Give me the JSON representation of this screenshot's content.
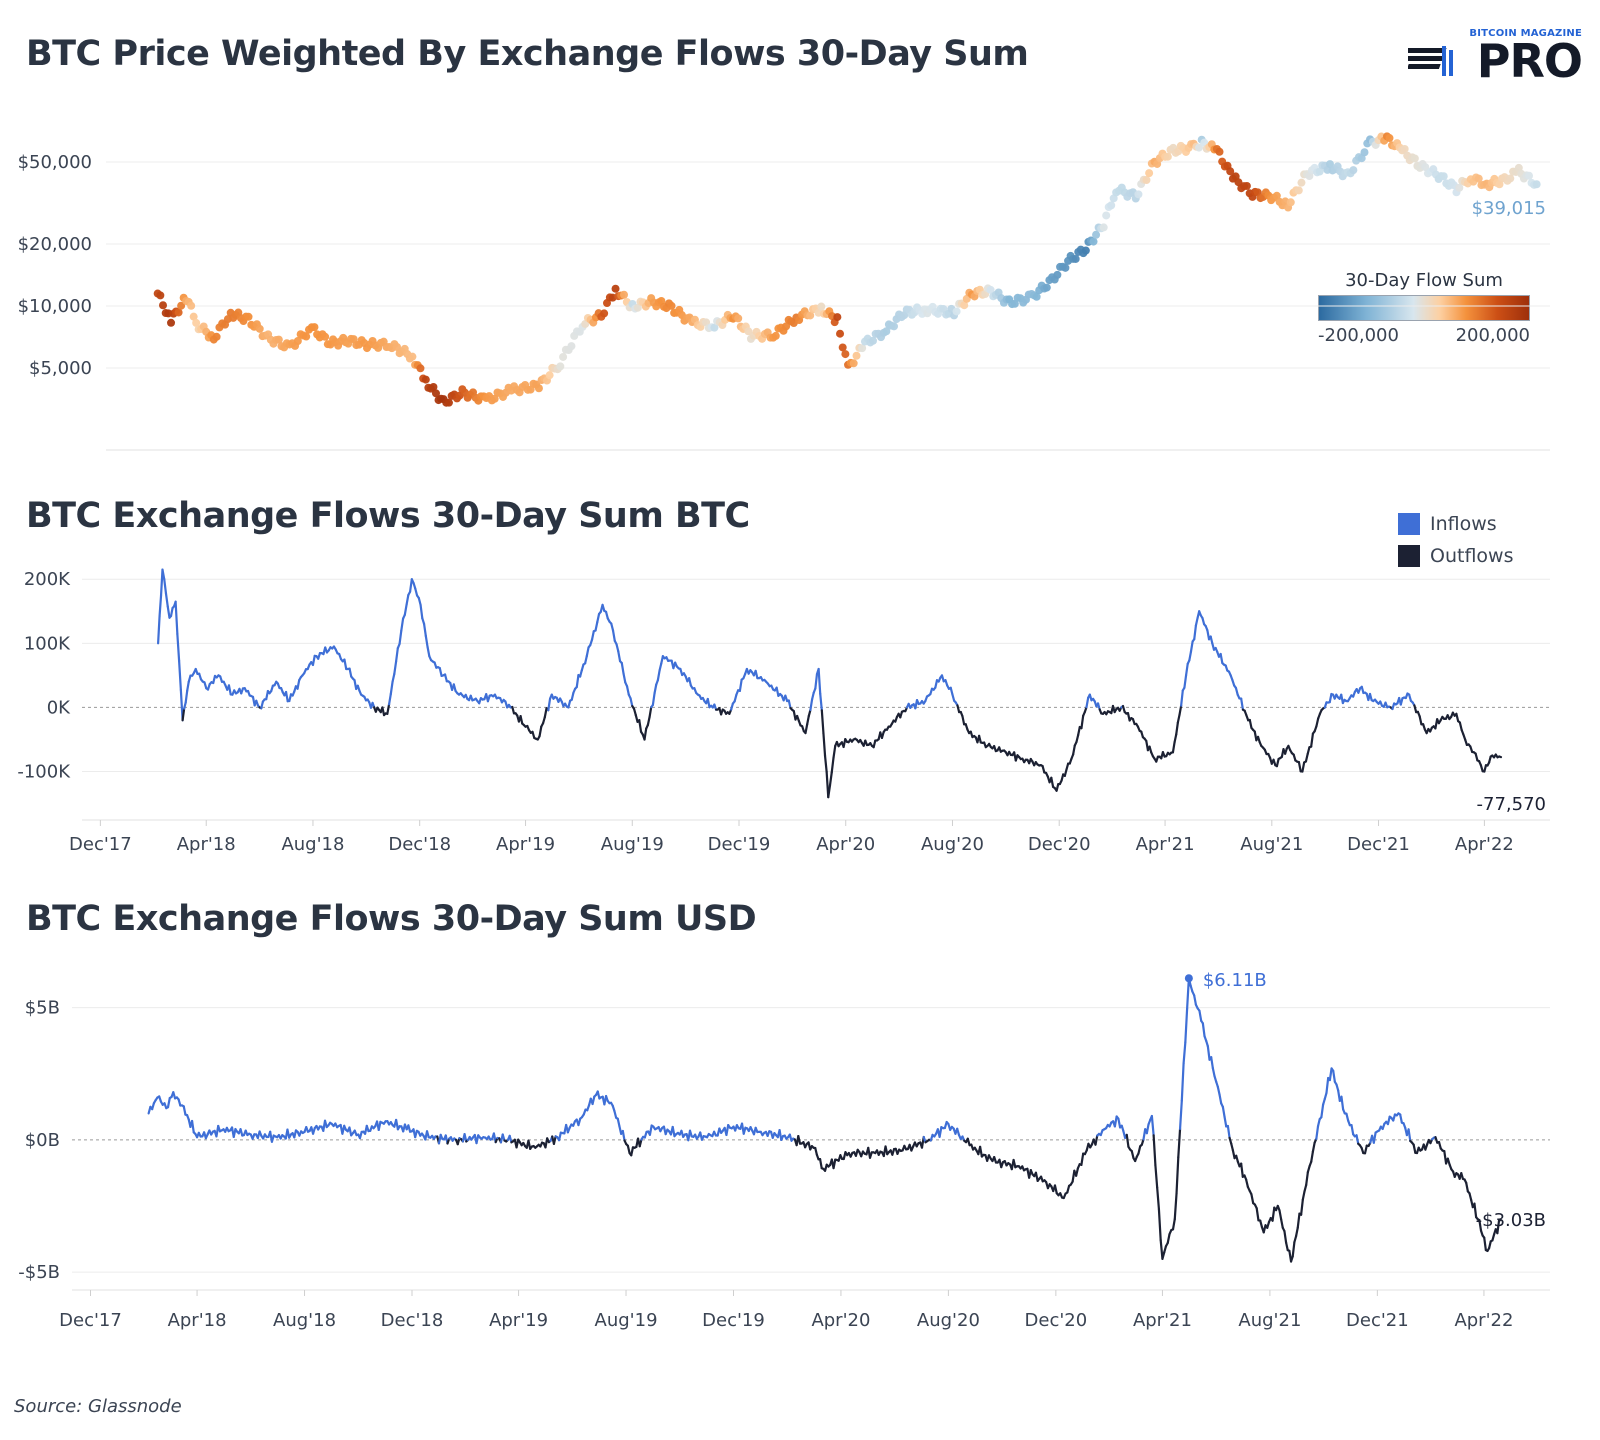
{
  "brand": {
    "top_text": "BITCOIN MAGAZINE",
    "main_text": "PRO"
  },
  "source": "Source: Glassnode",
  "chart_data": [
    {
      "type": "scatter",
      "title": "BTC Price Weighted By Exchange Flows 30-Day Sum",
      "ylabel": "",
      "y_scale": "log",
      "y_ticks": [
        "$5,000",
        "$10,000",
        "$20,000",
        "$50,000"
      ],
      "ylim": [
        2000,
        80000
      ],
      "last_value_label": "$39,015",
      "colorbar": {
        "title": "30-Day Flow Sum",
        "min_label": "-200,000",
        "max_label": "200,000",
        "colors": [
          "#2c6aa0",
          "#7fb3d5",
          "#d8e6ee",
          "#fdd0a2",
          "#f4923d",
          "#cc4f15",
          "#9e2f0b"
        ]
      },
      "x": [
        "2018-01-28",
        "2018-02-12",
        "2018-03-01",
        "2018-03-15",
        "2018-04-01",
        "2018-04-20",
        "2018-05-10",
        "2018-06-01",
        "2018-06-25",
        "2018-07-20",
        "2018-08-10",
        "2018-08-30",
        "2018-09-20",
        "2018-10-15",
        "2018-11-10",
        "2018-11-25",
        "2018-12-15",
        "2019-01-05",
        "2019-02-01",
        "2019-03-01",
        "2019-04-01",
        "2019-04-25",
        "2019-05-20",
        "2019-06-10",
        "2019-06-26",
        "2019-07-15",
        "2019-08-05",
        "2019-08-25",
        "2019-09-20",
        "2019-10-15",
        "2019-11-05",
        "2019-11-25",
        "2019-12-20",
        "2020-01-15",
        "2020-02-12",
        "2020-03-01",
        "2020-03-13",
        "2020-04-01",
        "2020-04-25",
        "2020-05-15",
        "2020-06-10",
        "2020-07-10",
        "2020-07-30",
        "2020-08-20",
        "2020-09-10",
        "2020-10-05",
        "2020-10-25",
        "2020-11-15",
        "2020-12-05",
        "2020-12-25",
        "2021-01-08",
        "2021-01-30",
        "2021-02-20",
        "2021-03-13",
        "2021-04-05",
        "2021-04-14",
        "2021-05-01",
        "2021-05-19",
        "2021-06-10",
        "2021-07-01",
        "2021-07-20",
        "2021-08-10",
        "2021-09-05",
        "2021-09-25",
        "2021-10-20",
        "2021-11-08",
        "2021-11-25",
        "2021-12-15",
        "2022-01-05",
        "2022-01-25",
        "2022-02-10",
        "2022-02-28",
        "2022-03-20",
        "2022-04-05",
        "2022-04-25"
      ],
      "y": [
        11500,
        8500,
        11000,
        8000,
        7000,
        9200,
        8600,
        7000,
        6300,
        7800,
        6600,
        6800,
        6500,
        6500,
        5700,
        4300,
        3400,
        3800,
        3500,
        3900,
        4100,
        5300,
        8200,
        9000,
        12000,
        9900,
        10500,
        10000,
        8300,
        8000,
        9000,
        7200,
        7200,
        8800,
        9700,
        8500,
        5000,
        6600,
        7600,
        9300,
        9600,
        9300,
        11500,
        11800,
        10400,
        11000,
        13000,
        16500,
        19000,
        25000,
        37000,
        34000,
        50000,
        57000,
        59000,
        62000,
        57000,
        42000,
        35000,
        34000,
        31000,
        44000,
        48000,
        43000,
        62000,
        65000,
        57000,
        48000,
        43000,
        37000,
        42000,
        39000,
        41000,
        45000,
        39015
      ],
      "flow": [
        150000,
        180000,
        40000,
        -10000,
        80000,
        90000,
        70000,
        30000,
        50000,
        70000,
        60000,
        50000,
        60000,
        40000,
        20000,
        160000,
        190000,
        120000,
        60000,
        40000,
        50000,
        -50000,
        -60000,
        120000,
        160000,
        -80000,
        50000,
        80000,
        40000,
        -80000,
        70000,
        -40000,
        60000,
        90000,
        -30000,
        150000,
        100000,
        -80000,
        -100000,
        -90000,
        -60000,
        -90000,
        60000,
        -70000,
        -130000,
        -120000,
        -150000,
        -160000,
        -180000,
        -60000,
        -80000,
        -90000,
        40000,
        -30000,
        20000,
        -100000,
        100000,
        160000,
        150000,
        60000,
        30000,
        -50000,
        -100000,
        -80000,
        -120000,
        80000,
        -20000,
        -50000,
        -80000,
        -70000,
        10000,
        30000,
        -20000,
        -40000,
        -80000
      ]
    },
    {
      "type": "line",
      "title": "BTC Exchange Flows 30-Day Sum BTC",
      "y_ticks": [
        "-100K",
        "0K",
        "100K",
        "200K"
      ],
      "ylim": [
        -160000,
        230000
      ],
      "x_ticks": [
        "Dec'17",
        "Apr'18",
        "Aug'18",
        "Dec'18",
        "Apr'19",
        "Aug'19",
        "Dec'19",
        "Apr'20",
        "Aug'20",
        "Dec'20",
        "Apr'21",
        "Aug'21",
        "Dec'21",
        "Apr'22"
      ],
      "legend": [
        {
          "name": "Inflows",
          "color": "#3f6fd6"
        },
        {
          "name": "Outflows",
          "color": "#1c2133"
        }
      ],
      "last_value_label": "-77,570",
      "x": [
        "2018-02-05",
        "2018-02-10",
        "2018-02-18",
        "2018-02-25",
        "2018-03-05",
        "2018-03-12",
        "2018-03-20",
        "2018-04-01",
        "2018-04-15",
        "2018-05-01",
        "2018-05-15",
        "2018-06-01",
        "2018-06-20",
        "2018-07-05",
        "2018-07-20",
        "2018-08-05",
        "2018-08-25",
        "2018-09-10",
        "2018-09-25",
        "2018-10-10",
        "2018-10-25",
        "2018-11-10",
        "2018-11-22",
        "2018-12-02",
        "2018-12-12",
        "2018-12-28",
        "2019-01-15",
        "2019-02-05",
        "2019-02-25",
        "2019-03-15",
        "2019-04-01",
        "2019-04-15",
        "2019-05-01",
        "2019-05-20",
        "2019-06-10",
        "2019-06-28",
        "2019-07-10",
        "2019-07-28",
        "2019-08-15",
        "2019-09-05",
        "2019-09-25",
        "2019-10-15",
        "2019-11-01",
        "2019-11-20",
        "2019-12-10",
        "2020-01-01",
        "2020-01-25",
        "2020-02-15",
        "2020-03-01",
        "2020-03-12",
        "2020-03-20",
        "2020-04-10",
        "2020-05-01",
        "2020-05-20",
        "2020-06-10",
        "2020-07-01",
        "2020-07-20",
        "2020-08-01",
        "2020-08-20",
        "2020-09-10",
        "2020-10-01",
        "2020-10-20",
        "2020-11-10",
        "2020-11-28",
        "2020-12-15",
        "2021-01-05",
        "2021-01-20",
        "2021-02-10",
        "2021-03-01",
        "2021-03-20",
        "2021-04-10",
        "2021-04-25",
        "2021-05-10",
        "2021-05-25",
        "2021-06-15",
        "2021-07-05",
        "2021-07-20",
        "2021-08-05",
        "2021-08-20",
        "2021-09-05",
        "2021-09-25",
        "2021-10-10",
        "2021-10-25",
        "2021-11-10",
        "2021-11-25",
        "2021-12-15",
        "2022-01-05",
        "2022-01-25",
        "2022-02-10",
        "2022-02-28",
        "2022-03-10",
        "2022-03-20",
        "2022-04-01",
        "2022-04-10",
        "2022-04-20"
      ],
      "values": [
        100000,
        215000,
        140000,
        165000,
        -20000,
        40000,
        60000,
        30000,
        50000,
        20000,
        30000,
        0,
        40000,
        10000,
        50000,
        80000,
        95000,
        60000,
        20000,
        0,
        -10000,
        120000,
        200000,
        160000,
        80000,
        50000,
        20000,
        10000,
        20000,
        0,
        -30000,
        -50000,
        20000,
        0,
        80000,
        160000,
        120000,
        20000,
        -50000,
        80000,
        60000,
        20000,
        0,
        -10000,
        60000,
        40000,
        10000,
        -40000,
        60000,
        -140000,
        -60000,
        -50000,
        -60000,
        -30000,
        0,
        10000,
        50000,
        20000,
        -40000,
        -60000,
        -70000,
        -80000,
        -90000,
        -130000,
        -80000,
        20000,
        -10000,
        0,
        -30000,
        -80000,
        -70000,
        50000,
        150000,
        100000,
        50000,
        -20000,
        -60000,
        -90000,
        -60000,
        -100000,
        -10000,
        20000,
        10000,
        30000,
        10000,
        0,
        20000,
        -40000,
        -20000,
        -10000,
        -50000,
        -70000,
        -100000,
        -75000,
        -77570
      ]
    },
    {
      "type": "line",
      "title": "BTC Exchange Flows 30-Day Sum USD",
      "y_ticks": [
        "-$5B",
        "$0B",
        "$5B"
      ],
      "ylim": [
        -5.3,
        6.8
      ],
      "x_ticks": [
        "Dec'17",
        "Apr'18",
        "Aug'18",
        "Dec'18",
        "Apr'19",
        "Aug'19",
        "Dec'19",
        "Apr'20",
        "Aug'20",
        "Dec'20",
        "Apr'21",
        "Aug'21",
        "Dec'21",
        "Apr'22"
      ],
      "annotations": [
        {
          "label": "$6.11B",
          "x": "2021-05-01",
          "y": 6.11
        }
      ],
      "last_value_label": "-$3.03B",
      "x": [
        "2018-02-05",
        "2018-02-15",
        "2018-02-25",
        "2018-03-05",
        "2018-03-15",
        "2018-04-01",
        "2018-05-01",
        "2018-06-01",
        "2018-07-01",
        "2018-08-01",
        "2018-09-01",
        "2018-10-01",
        "2018-11-01",
        "2018-11-25",
        "2018-12-20",
        "2019-01-20",
        "2019-02-20",
        "2019-03-20",
        "2019-04-20",
        "2019-05-15",
        "2019-06-10",
        "2019-06-28",
        "2019-07-15",
        "2019-08-05",
        "2019-09-01",
        "2019-10-01",
        "2019-11-01",
        "2019-12-01",
        "2020-01-01",
        "2020-02-01",
        "2020-03-01",
        "2020-03-12",
        "2020-04-10",
        "2020-05-10",
        "2020-06-10",
        "2020-07-10",
        "2020-08-01",
        "2020-08-25",
        "2020-09-20",
        "2020-10-20",
        "2020-11-20",
        "2020-12-10",
        "2021-01-05",
        "2021-01-25",
        "2021-02-10",
        "2021-03-01",
        "2021-03-20",
        "2021-04-01",
        "2021-04-15",
        "2021-05-01",
        "2021-05-15",
        "2021-06-01",
        "2021-06-20",
        "2021-07-05",
        "2021-07-25",
        "2021-08-10",
        "2021-08-25",
        "2021-09-15",
        "2021-10-10",
        "2021-10-25",
        "2021-11-15",
        "2021-12-05",
        "2021-12-25",
        "2022-01-15",
        "2022-02-05",
        "2022-02-25",
        "2022-03-10",
        "2022-03-25",
        "2022-04-05",
        "2022-04-20"
      ],
      "values": [
        1.0,
        1.6,
        1.2,
        1.8,
        1.3,
        0.1,
        0.4,
        0.2,
        0.1,
        0.3,
        0.6,
        0.2,
        0.7,
        0.4,
        0.1,
        0.0,
        0.1,
        0.0,
        -0.3,
        0.1,
        0.8,
        1.7,
        1.4,
        -0.5,
        0.5,
        0.2,
        0.1,
        0.5,
        0.3,
        0.1,
        -0.3,
        -1.1,
        -0.5,
        -0.5,
        -0.4,
        0.0,
        0.6,
        -0.2,
        -0.8,
        -1.0,
        -1.6,
        -2.2,
        -0.4,
        0.4,
        0.8,
        -0.8,
        0.9,
        -4.5,
        -3.0,
        6.11,
        4.5,
        2.2,
        -0.4,
        -1.5,
        -3.5,
        -2.5,
        -4.6,
        -1.0,
        2.7,
        1.0,
        -0.5,
        0.5,
        1.0,
        -0.5,
        0.1,
        -1.2,
        -1.5,
        -3.0,
        -4.2,
        -3.03
      ]
    }
  ]
}
